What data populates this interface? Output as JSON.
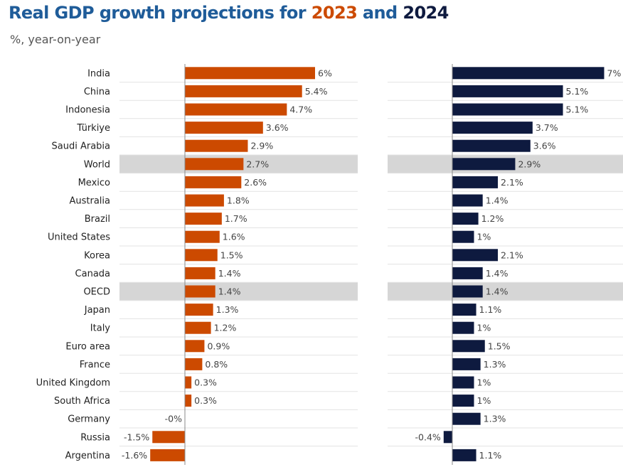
{
  "title": {
    "prefix": "Real GDP growth projections for ",
    "year1": "2023",
    "mid": " and ",
    "year2": "2024"
  },
  "subtitle": "%, year-on-year",
  "colors": {
    "series_2023": "#cc4a00",
    "series_2024": "#0e1a3f",
    "highlight": "#d6d6d6"
  },
  "chart_data": {
    "type": "bar",
    "orientation": "horizontal",
    "categories": [
      "India",
      "China",
      "Indonesia",
      "Türkiye",
      "Saudi Arabia",
      "World",
      "Mexico",
      "Australia",
      "Brazil",
      "United States",
      "Korea",
      "Canada",
      "OECD",
      "Japan",
      "Italy",
      "Euro area",
      "France",
      "United Kingdom",
      "South Africa",
      "Germany",
      "Russia",
      "Argentina"
    ],
    "highlighted": [
      "World",
      "OECD"
    ],
    "series": [
      {
        "name": "2023",
        "values": [
          6.0,
          5.4,
          4.7,
          3.6,
          2.9,
          2.7,
          2.6,
          1.8,
          1.7,
          1.6,
          1.5,
          1.4,
          1.4,
          1.3,
          1.2,
          0.9,
          0.8,
          0.3,
          0.3,
          0.0,
          -1.5,
          -1.6
        ],
        "labels": [
          "6%",
          "5.4%",
          "4.7%",
          "3.6%",
          "2.9%",
          "2.7%",
          "2.6%",
          "1.8%",
          "1.7%",
          "1.6%",
          "1.5%",
          "1.4%",
          "1.4%",
          "1.3%",
          "1.2%",
          "0.9%",
          "0.8%",
          "0.3%",
          "0.3%",
          "-0%",
          "-1.5%",
          "-1.6%"
        ]
      },
      {
        "name": "2024",
        "values": [
          7.0,
          5.1,
          5.1,
          3.7,
          3.6,
          2.9,
          2.1,
          1.4,
          1.2,
          1.0,
          2.1,
          1.4,
          1.4,
          1.1,
          1.0,
          1.5,
          1.3,
          1.0,
          1.0,
          1.3,
          -0.4,
          1.1
        ],
        "labels": [
          "7%",
          "5.1%",
          "5.1%",
          "3.7%",
          "3.6%",
          "2.9%",
          "2.1%",
          "1.4%",
          "1.2%",
          "1%",
          "2.1%",
          "1.4%",
          "1.4%",
          "1.1%",
          "1%",
          "1.5%",
          "1.3%",
          "1%",
          "1%",
          "1.3%",
          "-0.4%",
          "1.1%"
        ]
      }
    ],
    "grid": true,
    "legend": "none"
  }
}
